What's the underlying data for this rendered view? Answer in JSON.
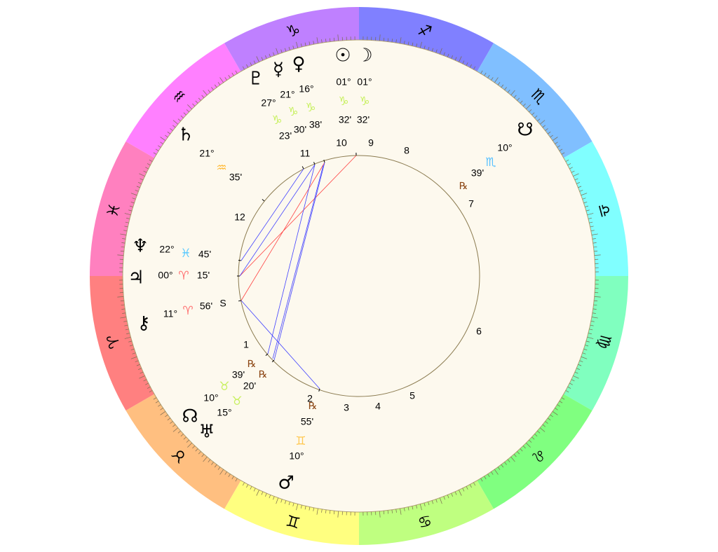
{
  "zodiac_ring": [
    {
      "sign": "sagittarius",
      "glyph": "♐︎",
      "color": "#8080ff"
    },
    {
      "sign": "scorpio",
      "glyph": "♏︎",
      "color": "#80bfff"
    },
    {
      "sign": "libra",
      "glyph": "♎︎",
      "color": "#80ffff"
    },
    {
      "sign": "virgo",
      "glyph": "♍︎",
      "color": "#80ffbf"
    },
    {
      "sign": "leo",
      "glyph": "♌︎",
      "color": "#80ff80"
    },
    {
      "sign": "cancer",
      "glyph": "♋︎",
      "color": "#bfff80"
    },
    {
      "sign": "gemini",
      "glyph": "♊︎",
      "color": "#ffff80"
    },
    {
      "sign": "taurus",
      "glyph": "♉︎",
      "color": "#ffbf80"
    },
    {
      "sign": "aries",
      "glyph": "♈︎",
      "color": "#ff8080"
    },
    {
      "sign": "pisces",
      "glyph": "♓︎",
      "color": "#ff80bf"
    },
    {
      "sign": "aquarius",
      "glyph": "♒︎",
      "color": "#ff80ff"
    },
    {
      "sign": "capricorn",
      "glyph": "♑︎",
      "color": "#bf80ff"
    }
  ],
  "colors": {
    "background": "#fdf9ee",
    "house_circle": "#8b7b50",
    "aspect_harmonious": "#4040ff",
    "aspect_hard": "#ff4040",
    "retrograde": "#8b4513"
  },
  "planets": [
    {
      "name": "sun",
      "glyph": "☉︎",
      "degree": "01°",
      "sign": "♑︎",
      "sign_color": "#c8f060",
      "minute": "32'",
      "retro": ""
    },
    {
      "name": "moon",
      "glyph": "☽︎",
      "degree": "01°",
      "sign": "♑︎",
      "sign_color": "#c8f060",
      "minute": "32'",
      "retro": ""
    },
    {
      "name": "venus",
      "glyph": "♀︎",
      "degree": "16°",
      "sign": "♑︎",
      "sign_color": "#c8f060",
      "minute": "38'",
      "retro": ""
    },
    {
      "name": "mercury",
      "glyph": "☿︎",
      "degree": "21°",
      "sign": "♑︎",
      "sign_color": "#c8f060",
      "minute": "30'",
      "retro": ""
    },
    {
      "name": "pluto",
      "glyph": "♇︎",
      "degree": "27°",
      "sign": "♑︎",
      "sign_color": "#c8f060",
      "minute": "23'",
      "retro": ""
    },
    {
      "name": "saturn",
      "glyph": "♄︎",
      "degree": "21°",
      "sign": "♒︎",
      "sign_color": "#ffb830",
      "minute": "35'",
      "retro": ""
    },
    {
      "name": "neptune",
      "glyph": "♆︎",
      "degree": "22°",
      "sign": "♓︎",
      "sign_color": "#55c8ff",
      "minute": "45'",
      "retro": ""
    },
    {
      "name": "jupiter",
      "glyph": "♃︎",
      "degree": "00°",
      "sign": "♈︎",
      "sign_color": "#ff7070",
      "minute": "15'",
      "retro": ""
    },
    {
      "name": "chiron",
      "glyph": "⚷︎",
      "degree": "11°",
      "sign": "♈︎",
      "sign_color": "#ff7070",
      "minute": "56'",
      "retro": ""
    },
    {
      "name": "north-node",
      "glyph": "☊︎",
      "degree": "10°",
      "sign": "♉︎",
      "sign_color": "#c8f060",
      "minute": "39'",
      "retro": "℞"
    },
    {
      "name": "uranus",
      "glyph": "♅︎",
      "degree": "15°",
      "sign": "♉︎",
      "sign_color": "#c8f060",
      "minute": "20'",
      "retro": "℞"
    },
    {
      "name": "mars",
      "glyph": "♂︎",
      "degree": "10°",
      "sign": "♊︎",
      "sign_color": "#ffc850",
      "minute": "55'",
      "retro": "℞"
    },
    {
      "name": "south-node",
      "glyph": "☋︎",
      "degree": "10°",
      "sign": "♏︎",
      "sign_color": "#55c0ff",
      "minute": "39'",
      "retro": "℞"
    }
  ],
  "houses": [
    "10",
    "9",
    "8",
    "11",
    "12",
    "S",
    "1",
    "2",
    "3",
    "4",
    "5",
    "6",
    "7"
  ]
}
